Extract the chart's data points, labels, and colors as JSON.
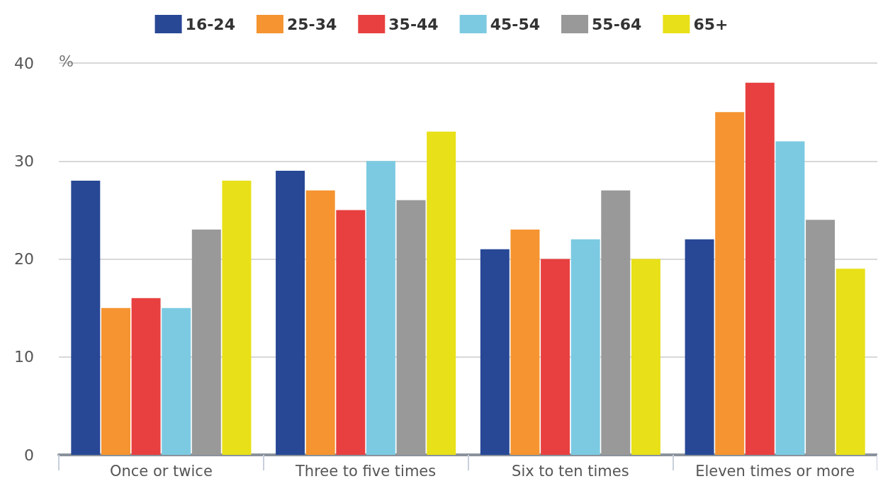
{
  "chart_data": {
    "type": "bar",
    "ylabel": "%",
    "categories": [
      "Once or twice",
      "Three to five times",
      "Six to ten times",
      "Eleven times or more"
    ],
    "series": [
      {
        "name": "16-24",
        "color": "#284896",
        "values": [
          28,
          29,
          21,
          22
        ]
      },
      {
        "name": "25-34",
        "color": "#f59430",
        "values": [
          15,
          27,
          23,
          35
        ]
      },
      {
        "name": "35-44",
        "color": "#e84040",
        "values": [
          16,
          25,
          20,
          38
        ]
      },
      {
        "name": "45-54",
        "color": "#7ccae2",
        "values": [
          15,
          30,
          22,
          32
        ]
      },
      {
        "name": "55-64",
        "color": "#999999",
        "values": [
          23,
          26,
          27,
          24
        ]
      },
      {
        "name": "65+",
        "color": "#e8e018",
        "values": [
          28,
          33,
          20,
          19
        ]
      }
    ],
    "ylim": [
      0,
      40
    ],
    "yticks": [
      0,
      10,
      20,
      30,
      40
    ],
    "grid": "y",
    "legend": "top"
  }
}
